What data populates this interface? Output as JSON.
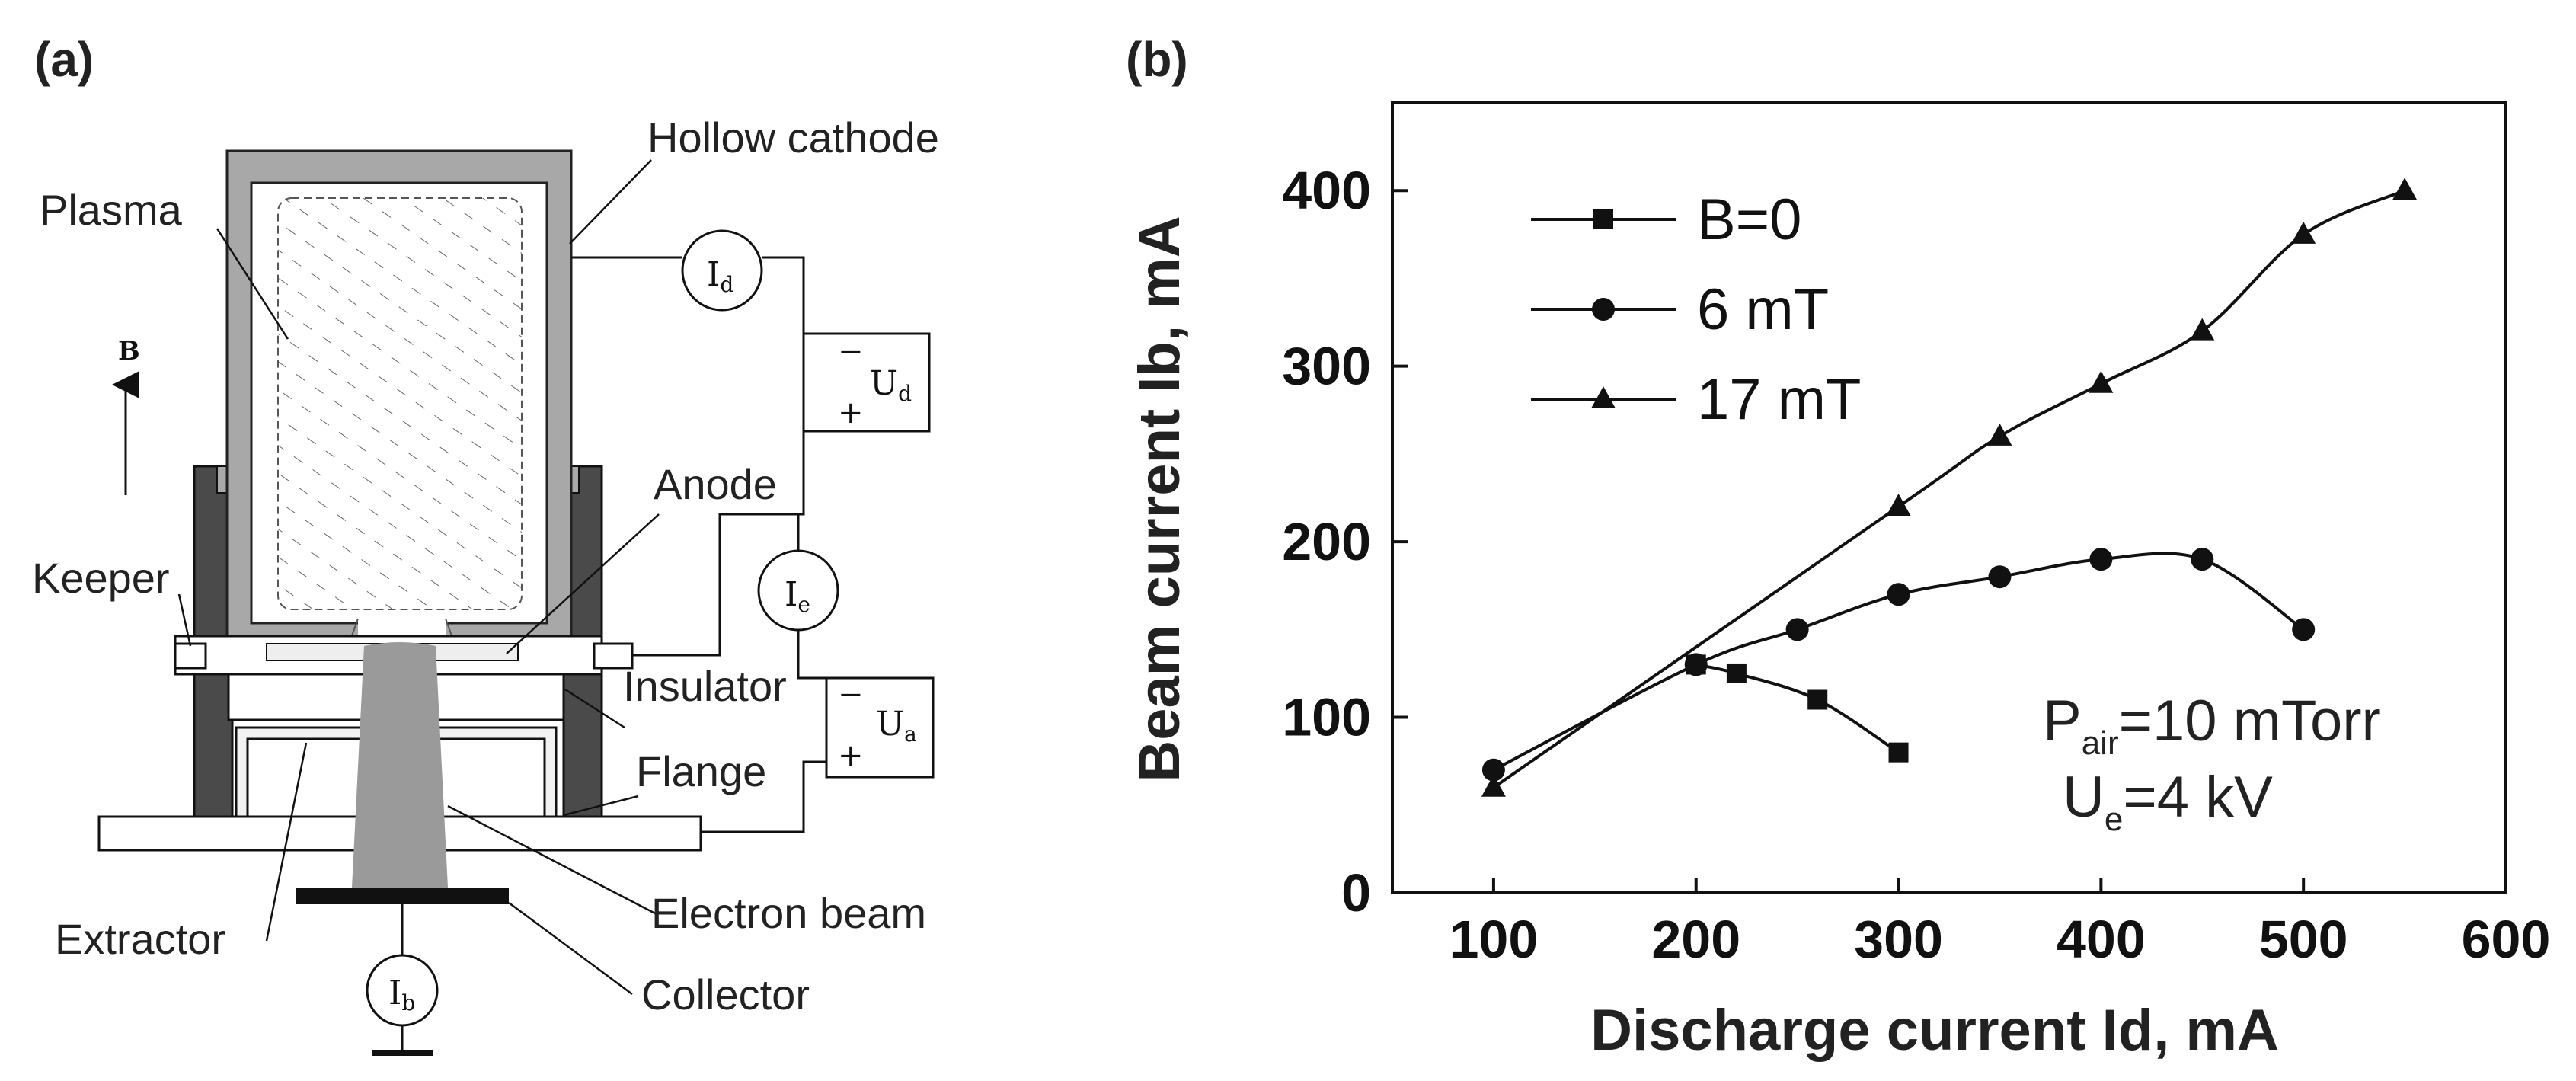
{
  "panel_a": {
    "tag": "(a)",
    "labels": {
      "hollow_cathode": "Hollow cathode",
      "plasma": "Plasma",
      "anode": "Anode",
      "keeper": "Keeper",
      "insulator": "Insulator",
      "flange": "Flange",
      "extractor": "Extractor",
      "electron_beam": "Electron beam",
      "collector": "Collector",
      "field": "B"
    },
    "meters": {
      "id_main": "I",
      "id_sub": "d",
      "ie_main": "I",
      "ie_sub": "e",
      "ib_main": "I",
      "ib_sub": "b"
    },
    "supplies": {
      "ud_main": "U",
      "ud_sub": "d",
      "ua_main": "U",
      "ua_sub": "a",
      "minus": "−",
      "plus": "+"
    }
  },
  "panel_b": {
    "tag": "(b)",
    "annotations": {
      "p_main": "P",
      "p_sub": "air",
      "p_rest": "=10 mTorr",
      "u_main": "U",
      "u_sub": "e",
      "u_rest": "=4 kV"
    }
  },
  "chart_data": {
    "type": "line",
    "title": "",
    "xlabel": "Discharge current Id, mA",
    "ylabel": "Beam current Ib, mA",
    "xlim": [
      50,
      600
    ],
    "ylim": [
      0,
      450
    ],
    "xticks": [
      100,
      200,
      300,
      400,
      500,
      600
    ],
    "yticks": [
      0,
      100,
      200,
      300,
      400
    ],
    "grid": false,
    "legend": "top-left",
    "series": [
      {
        "name": "B=0",
        "marker": "square",
        "x": [
          200,
          220,
          260,
          300
        ],
        "y": [
          130,
          125,
          110,
          80
        ]
      },
      {
        "name": "6 mT",
        "marker": "circle",
        "x": [
          100,
          200,
          250,
          300,
          350,
          400,
          450,
          500
        ],
        "y": [
          70,
          130,
          150,
          170,
          180,
          190,
          190,
          150
        ]
      },
      {
        "name": "17 mT",
        "marker": "triangle",
        "x": [
          100,
          300,
          350,
          400,
          450,
          500,
          550
        ],
        "y": [
          60,
          220,
          260,
          290,
          320,
          375,
          400
        ]
      }
    ]
  }
}
